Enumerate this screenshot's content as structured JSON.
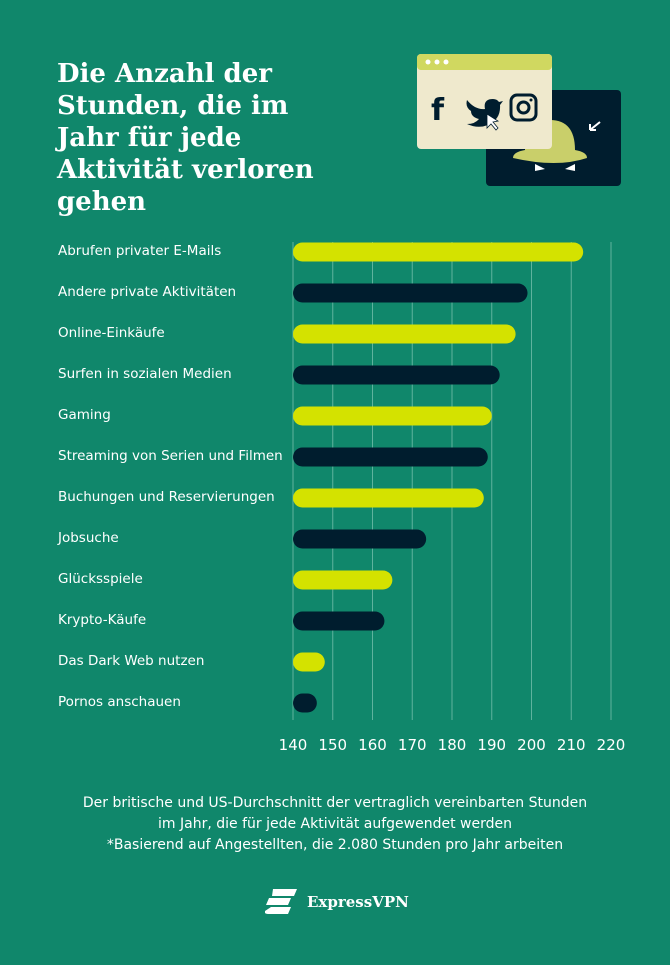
{
  "title": "Die Anzahl der Stunden, die im Jahr für jede Aktivität verloren gehen",
  "colors": {
    "background": "#10876b",
    "lime": "#d4e200",
    "navy": "#001d2e",
    "grid": "#5fb39e"
  },
  "illustration_icons": [
    "facebook-icon",
    "twitter-icon",
    "instagram-icon",
    "cursor-icon",
    "spy-hat-icon"
  ],
  "chart_data": {
    "type": "bar",
    "orientation": "horizontal",
    "categories": [
      "Abrufen privater E-Mails",
      "Andere private Aktivitäten",
      "Online-Einkäufe",
      "Surfen in sozialen Medien",
      "Gaming",
      "Streaming von Serien und Filmen",
      "Buchungen und Reservierungen",
      "Jobsuche",
      "Glücksspiele",
      "Krypto-Käufe",
      "Das Dark Web nutzen",
      "Pornos anschauen"
    ],
    "values": [
      213,
      199,
      196,
      192,
      190,
      189,
      188,
      173.5,
      165,
      163,
      148,
      146
    ],
    "bar_colors": [
      "#d4e200",
      "#001d2e",
      "#d4e200",
      "#001d2e",
      "#d4e200",
      "#001d2e",
      "#d4e200",
      "#001d2e",
      "#d4e200",
      "#001d2e",
      "#d4e200",
      "#001d2e"
    ],
    "xlim": [
      140,
      220
    ],
    "xticks": [
      "140",
      "150",
      "160",
      "170",
      "180",
      "190",
      "200",
      "210",
      "220"
    ],
    "grid": "vertical",
    "xlabel": "",
    "ylabel": ""
  },
  "caption": {
    "line1": "Der britische und US-Durchschnitt der vertraglich vereinbarten Stunden",
    "line2": "im Jahr, die für jede Aktivität aufgewendet werden",
    "line3": "*Basierend auf Angestellten, die 2.080 Stunden pro Jahr arbeiten"
  },
  "brand": "ExpressVPN"
}
